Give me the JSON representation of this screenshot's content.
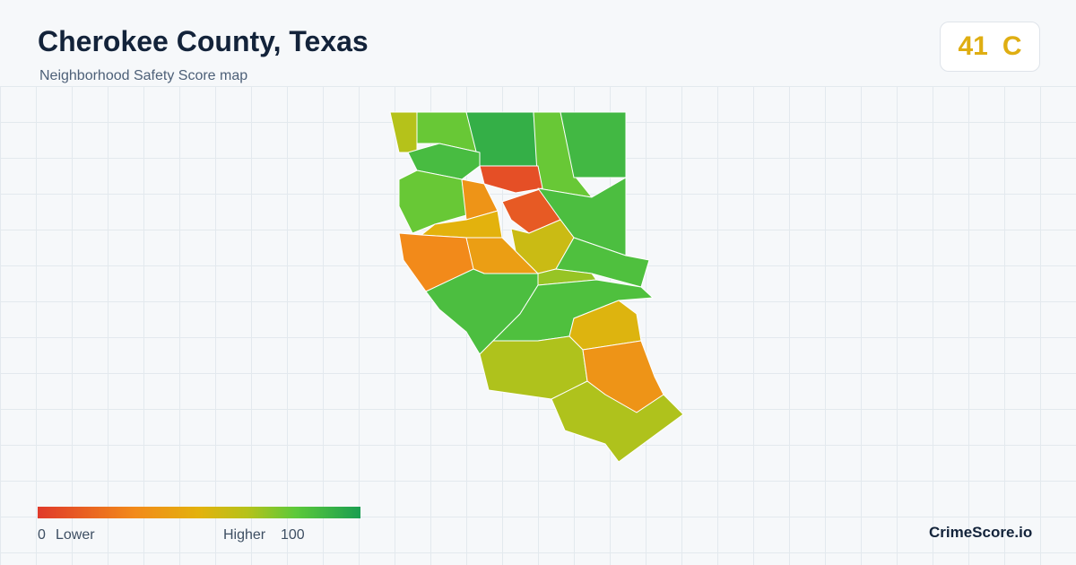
{
  "header": {
    "title": "Cherokee County, Texas",
    "subtitle": "Neighborhood Safety Score map"
  },
  "score_badge": {
    "score": 41,
    "grade": "C"
  },
  "map": {
    "scores": [
      65,
      78,
      92,
      78,
      88,
      86,
      8,
      78,
      35,
      12,
      85,
      50,
      30,
      40,
      58,
      84,
      70,
      85,
      84,
      52,
      66,
      35,
      66
    ]
  },
  "legend": {
    "min": "0",
    "low_label": "Lower",
    "high_label": "Higher",
    "max": "100"
  },
  "brand": "CrimeScore.io"
}
